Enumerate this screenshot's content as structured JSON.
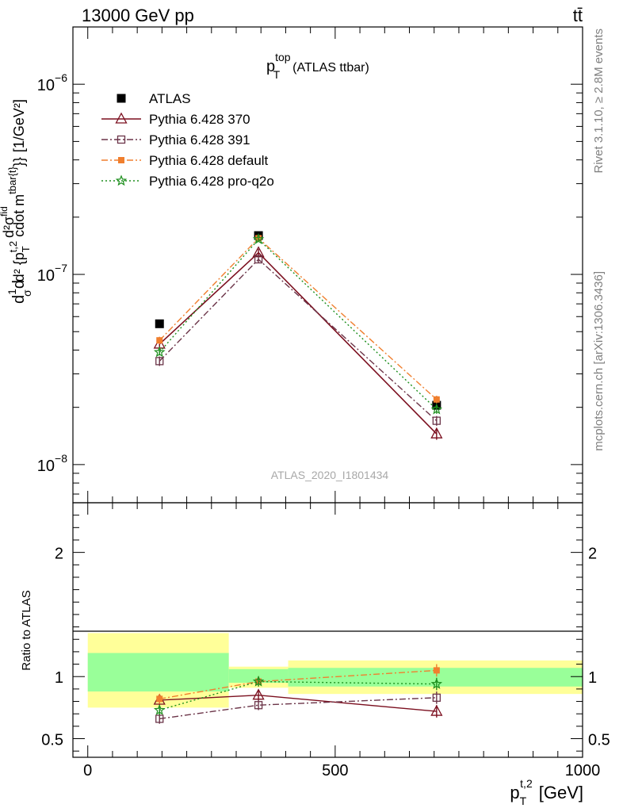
{
  "header": {
    "left": "13000 GeV pp",
    "right": "tt̄"
  },
  "side_labels": {
    "rivet": "Rivet 3.1.10, ≥ 2.8M events",
    "mcplots": "mcplots.cern.ch [arXiv:1306.3436]"
  },
  "chart_data": [
    {
      "type": "line",
      "panel": "main",
      "title": "p_T^top (ATLAS ttbar)",
      "title_main": "p",
      "title_sup": "top",
      "title_sub": "T",
      "title_rest": "(ATLAS ttbar)",
      "watermark": "ATLAS_2020_I1801434",
      "ylabel": "d¹d/σ d²σ^{fid} / d²{p_T^{t,2} cdot m^{tbar{t}}} [1/GeV²]",
      "ylabel_parts": {
        "a": "d",
        "b": "1",
        "c": "d",
        "d": "σ",
        "num": "d²σ",
        "num_sup": "fid",
        "den1": "d² {p",
        "den_sub": "T",
        "den_sup": "t,2",
        "den2": " cdot m",
        "den_sup2": "tbar{t}",
        "den3": "}}",
        "units": "[1/GeV²]"
      },
      "yscale": "log",
      "ylim": [
        6.3e-09,
        2e-06
      ],
      "xlim": [
        -30,
        1000
      ],
      "y_tick_labels": [
        {
          "value": 1e-06,
          "base": "10",
          "exp": "−6"
        },
        {
          "value": 1e-07,
          "base": "10",
          "exp": "−7"
        },
        {
          "value": 1e-08,
          "base": "10",
          "exp": "−8"
        }
      ],
      "legend_position": "top-left",
      "series": [
        {
          "name": "ATLAS",
          "color": "#000000",
          "marker": "square-filled",
          "line": "none",
          "x": [
            145,
            345,
            705
          ],
          "y": [
            5.5e-08,
            1.6e-07,
            2.05e-08
          ],
          "err": [
            0,
            0,
            0
          ]
        },
        {
          "name": "Pythia 6.428 370",
          "color": "#7b0f1f",
          "marker": "triangle-open",
          "line": "solid",
          "x": [
            145,
            345,
            705
          ],
          "y": [
            4.3e-08,
            1.3e-07,
            1.45e-08
          ],
          "err": [
            2e-09,
            6e-09,
            1e-09
          ]
        },
        {
          "name": "Pythia 6.428 391",
          "color": "#6b3448",
          "marker": "square-open",
          "line": "dashdot",
          "x": [
            145,
            345,
            705
          ],
          "y": [
            3.5e-08,
            1.2e-07,
            1.7e-08
          ],
          "err": [
            2e-09,
            5e-09,
            1e-09
          ]
        },
        {
          "name": "Pythia 6.428 default",
          "color": "#f07f2e",
          "marker": "square-filled-small",
          "line": "dashdot",
          "x": [
            145,
            345,
            705
          ],
          "y": [
            4.5e-08,
            1.55e-07,
            2.2e-08
          ],
          "err": [
            2e-09,
            5e-09,
            1e-09
          ]
        },
        {
          "name": "Pythia 6.428 pro-q2o",
          "color": "#1e8f1e",
          "marker": "star-open",
          "line": "dotted",
          "x": [
            145,
            345,
            705
          ],
          "y": [
            3.9e-08,
            1.53e-07,
            1.95e-08
          ],
          "err": [
            1.5e-09,
            5e-09,
            1e-09
          ]
        }
      ]
    },
    {
      "type": "line",
      "panel": "ratio",
      "ylabel": "Ratio to ATLAS",
      "xlabel": "p_T^{t,2} [GeV]",
      "xlabel_main": "p",
      "xlabel_sub": "T",
      "xlabel_sup": "t,2",
      "xlabel_rest": "[GeV]",
      "xlim": [
        -30,
        1000
      ],
      "ylim": [
        0.35,
        2.4
      ],
      "x_tick_labels": [
        {
          "value": 0,
          "label": "0"
        },
        {
          "value": 500,
          "label": "500"
        },
        {
          "value": 1000,
          "label": "1000"
        }
      ],
      "y_tick_labels": [
        {
          "value": 0.5,
          "label": "0.5"
        },
        {
          "value": 1,
          "label": "1"
        },
        {
          "value": 2,
          "label": "2"
        }
      ],
      "bands": [
        {
          "x": [
            0,
            285
          ],
          "yellow": [
            0.75,
            1.35
          ],
          "green": [
            0.88,
            1.19
          ]
        },
        {
          "x": [
            285,
            405
          ],
          "yellow": [
            0.91,
            1.08
          ],
          "green": [
            0.95,
            1.06
          ]
        },
        {
          "x": [
            405,
            1000
          ],
          "yellow": [
            0.86,
            1.13
          ],
          "green": [
            0.92,
            1.07
          ]
        }
      ],
      "series": [
        {
          "name": "Pythia 6.428 370",
          "x": [
            145,
            345,
            705
          ],
          "y": [
            0.81,
            0.85,
            0.72
          ],
          "err": [
            0.04,
            0.04,
            0.05
          ]
        },
        {
          "name": "Pythia 6.428 391",
          "x": [
            145,
            345,
            705
          ],
          "y": [
            0.66,
            0.77,
            0.83
          ],
          "err": [
            0.04,
            0.04,
            0.05
          ]
        },
        {
          "name": "Pythia 6.428 default",
          "x": [
            145,
            345,
            705
          ],
          "y": [
            0.82,
            0.96,
            1.05
          ],
          "err": [
            0.04,
            0.04,
            0.05
          ]
        },
        {
          "name": "Pythia 6.428 pro-q2o",
          "x": [
            145,
            345,
            705
          ],
          "y": [
            0.73,
            0.96,
            0.94
          ],
          "err": [
            0.04,
            0.04,
            0.05
          ]
        }
      ]
    }
  ]
}
